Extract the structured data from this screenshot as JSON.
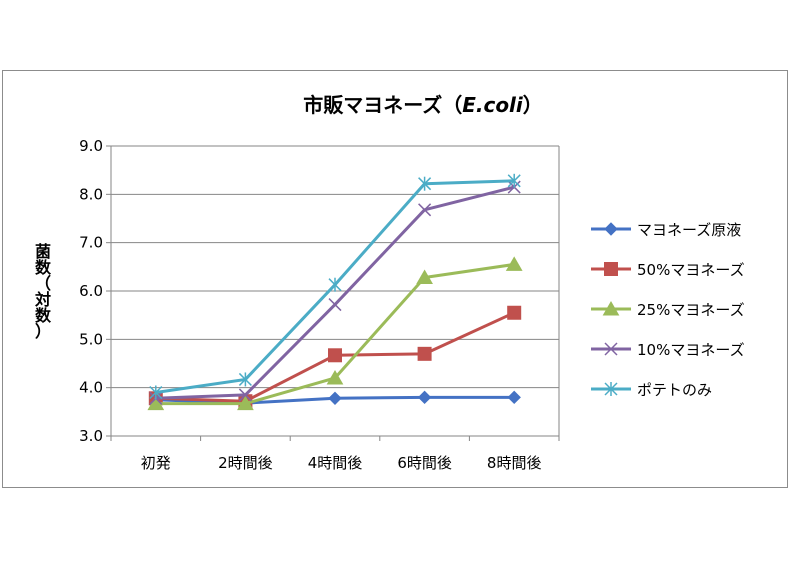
{
  "chart_data": {
    "type": "line",
    "title_main": "市販マヨネーズ（",
    "title_italic": "E.coli",
    "title_end": "）",
    "ylabel_chars": [
      "菌",
      "数",
      "（",
      "対",
      "数",
      "）"
    ],
    "xlabel": "",
    "categories": [
      "初発",
      "2時間後",
      "4時間後",
      "6時間後",
      "8時間後"
    ],
    "ylim": [
      3.0,
      9.0
    ],
    "yticks": [
      "3.0",
      "4.0",
      "5.0",
      "6.0",
      "7.0",
      "8.0",
      "9.0"
    ],
    "grid": true,
    "legend_position": "right",
    "series": [
      {
        "name": "マヨネーズ原液",
        "color": "#4472c4",
        "marker": "diamond",
        "values": [
          3.75,
          3.68,
          3.78,
          3.8,
          3.8
        ]
      },
      {
        "name": "50%マヨネーズ",
        "color": "#c0504d",
        "marker": "square",
        "values": [
          3.78,
          3.72,
          4.67,
          4.7,
          5.55
        ]
      },
      {
        "name": "25%マヨネーズ",
        "color": "#9bbb59",
        "marker": "triangle",
        "values": [
          3.67,
          3.67,
          4.2,
          6.28,
          6.55
        ]
      },
      {
        "name": "10%マヨネーズ",
        "color": "#8064a2",
        "marker": "x",
        "values": [
          3.78,
          3.85,
          5.72,
          7.68,
          8.15
        ]
      },
      {
        "name": "ポテトのみ",
        "color": "#4bacc6",
        "marker": "star",
        "values": [
          3.9,
          4.17,
          6.13,
          8.22,
          8.28
        ]
      }
    ]
  }
}
